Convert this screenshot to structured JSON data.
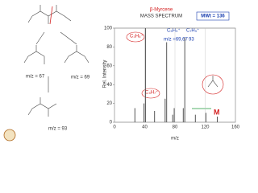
{
  "chart_data": {
    "type": "bar",
    "title": "MASS SPECTRUM",
    "compound": "β-Myrcene",
    "x_label": "m/z",
    "y_label": "Rel. Intensity",
    "x": [
      27,
      39,
      41,
      53,
      67,
      69,
      77,
      79,
      91,
      93,
      107,
      121,
      136
    ],
    "values": [
      15,
      20,
      100,
      12,
      25,
      85,
      8,
      15,
      15,
      90,
      8,
      10,
      6
    ],
    "color": "#555555",
    "xlim": [
      0,
      160
    ],
    "xticks": [
      0,
      40,
      80,
      120,
      160
    ],
    "ylim": [
      0,
      100
    ],
    "yticks": [
      0,
      20,
      40,
      60,
      80,
      100
    ]
  },
  "annotations": {
    "mwt": "MWt = 136",
    "c3h5": "C₃H₅⁺",
    "c5h9": "C₅H₉⁺",
    "c7h9": "C₇H₉⁺",
    "mz_pair": "m/z =69,67",
    "mz_93": "93",
    "c4h7": "C₄H₇⁺",
    "molecular_ion": "M"
  },
  "fragments": {
    "mz67": "m/z = 67",
    "mz69": "m/z = 69",
    "mz93": "m/z = 93"
  }
}
